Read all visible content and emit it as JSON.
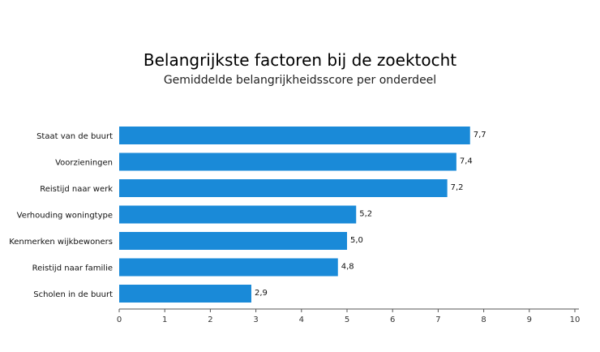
{
  "chart_data": {
    "type": "bar",
    "orientation": "horizontal",
    "title": "Belangrijkste factoren bij de zoektocht",
    "subtitle": "Gemiddelde belangrijkheidsscore per onderdeel",
    "categories": [
      "Staat van de buurt",
      "Voorzieningen",
      "Reistijd naar werk",
      "Verhouding woningtype",
      "Kenmerken wijkbewoners",
      "Reistijd naar familie",
      "Scholen in de buurt"
    ],
    "values": [
      7.7,
      7.4,
      7.2,
      5.2,
      5.0,
      4.8,
      2.9
    ],
    "value_labels": [
      "7,7",
      "7,4",
      "7,2",
      "5,2",
      "5,0",
      "4,8",
      "2,9"
    ],
    "xlim": [
      0,
      10
    ],
    "xticks": [
      0,
      1,
      2,
      3,
      4,
      5,
      6,
      7,
      8,
      9,
      10
    ],
    "xlabel": "",
    "ylabel": "",
    "grid": false,
    "legend": "none",
    "bar_color": "#1a8ad8"
  }
}
